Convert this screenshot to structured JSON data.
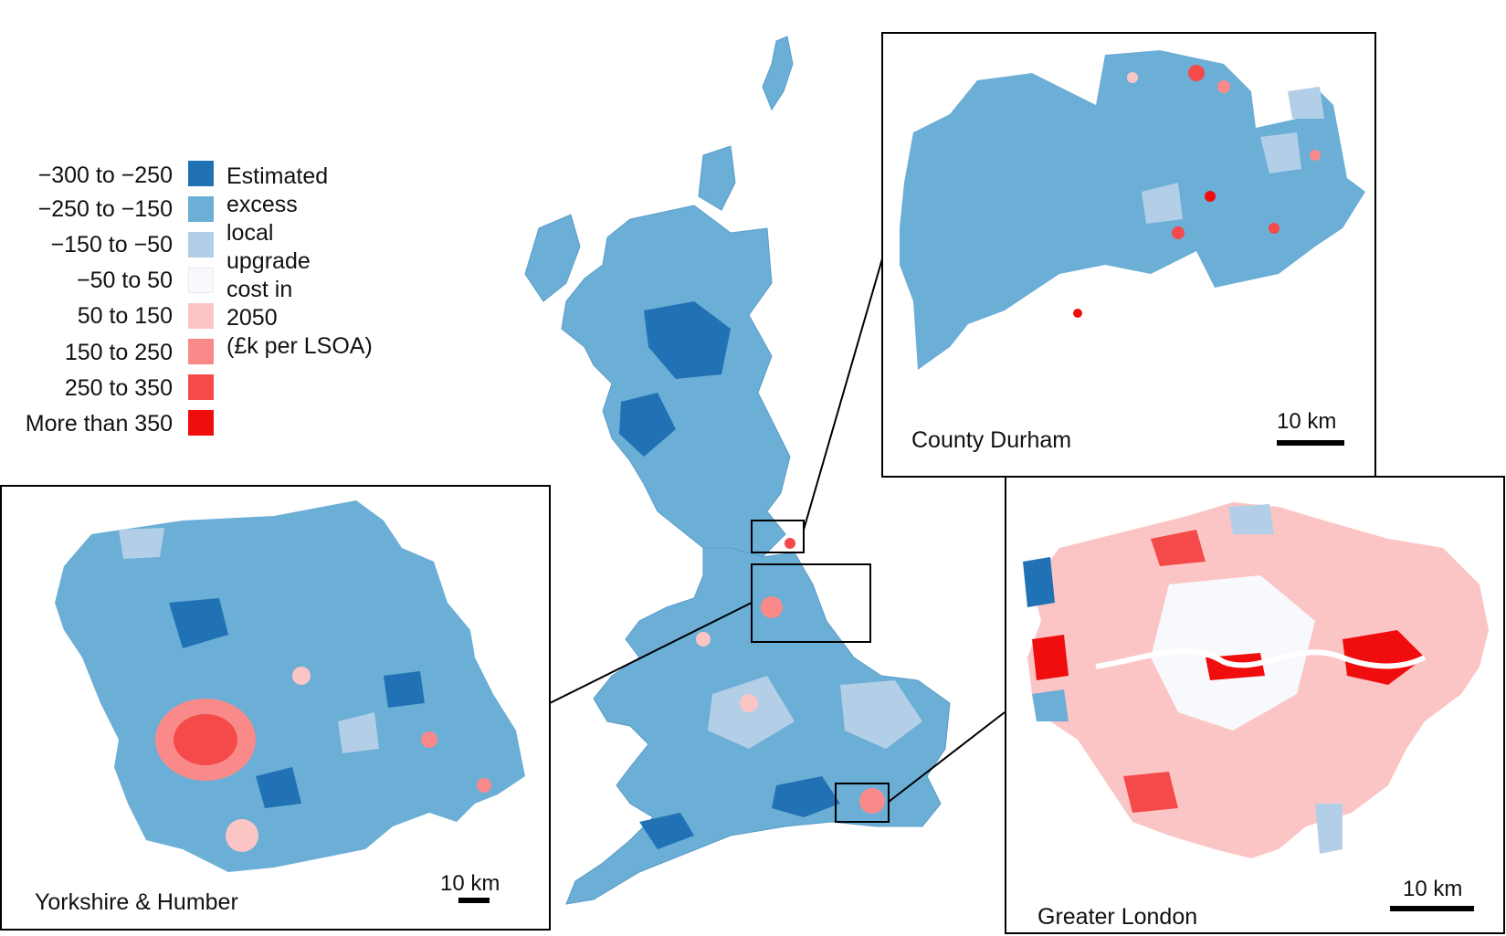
{
  "legend": {
    "title_lines": [
      "Estimated",
      "excess",
      "local",
      "upgrade",
      "cost in",
      "2050",
      "(£k per LSOA)"
    ],
    "items": [
      {
        "label": "−300 to −250",
        "color": "#2171b5"
      },
      {
        "label": "−250 to −150",
        "color": "#6baed6"
      },
      {
        "label": "−150 to −50",
        "color": "#b3cfe8"
      },
      {
        "label": "−50 to 50",
        "color": "#f7f9fc"
      },
      {
        "label": "50 to 150",
        "color": "#fcc5c5"
      },
      {
        "label": "150 to 250",
        "color": "#fa8a8a"
      },
      {
        "label": "250 to 350",
        "color": "#f44a4a"
      },
      {
        "label": "More than 350",
        "color": "#f00d0d"
      }
    ]
  },
  "insets": {
    "durham": {
      "label": "County Durham",
      "scale": "10 km"
    },
    "yorkshire": {
      "label": "Yorkshire & Humber",
      "scale": "10 km"
    },
    "london": {
      "label": "Greater London",
      "scale": "10 km"
    }
  }
}
